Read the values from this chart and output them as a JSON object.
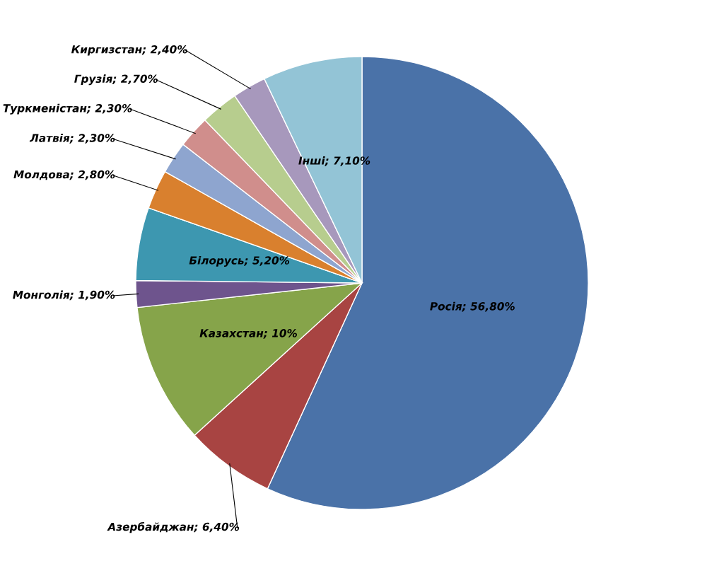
{
  "chart_data": {
    "type": "pie",
    "categories": [
      "Росія",
      "Азербайджан",
      "Казахстан",
      "Монголія",
      "Білорусь",
      "Молдова",
      "Латвія",
      "Туркменістан",
      "Грузія",
      "Киргизстан",
      "Інші"
    ],
    "values": [
      56.8,
      6.4,
      10,
      1.9,
      5.2,
      2.8,
      2.3,
      2.3,
      2.7,
      2.4,
      7.1
    ],
    "value_labels": [
      "56,80%",
      "6,40%",
      "10%",
      "1,90%",
      "5,20%",
      "2,80%",
      "2,30%",
      "2,30%",
      "2,70%",
      "2,40%",
      "7,10%"
    ],
    "colors": [
      "#4a72a8",
      "#a84442",
      "#86a44a",
      "#6e548d",
      "#3d97b0",
      "#d9802e",
      "#8ea5cf",
      "#d08e8c",
      "#b7cd8e",
      "#a798bc",
      "#93c4d6"
    ],
    "legend": false
  }
}
